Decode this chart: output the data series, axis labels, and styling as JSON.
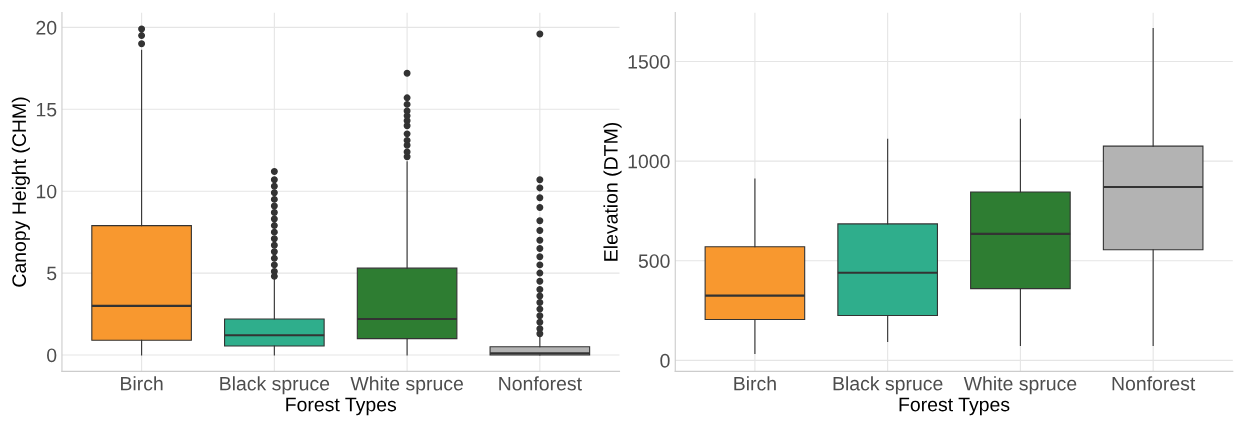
{
  "chart_data": [
    {
      "type": "box",
      "xlabel": "Forest Types",
      "ylabel": "Canopy Height (CHM)",
      "categories": [
        "Birch",
        "Black spruce",
        "White spruce",
        "Nonforest"
      ],
      "colors": [
        "#f8982f",
        "#2fae8c",
        "#2e7d32",
        "#b3b3b3"
      ],
      "ylim": [
        -1.0,
        20.9
      ],
      "yticks": [
        0,
        5,
        10,
        15,
        20
      ],
      "grid": true,
      "boxes": [
        {
          "low": 0,
          "q1": 0.9,
          "median": 3.0,
          "q3": 7.9,
          "high": 18.6,
          "outliers": [
            19.0,
            19.5,
            19.9
          ]
        },
        {
          "low": 0,
          "q1": 0.55,
          "median": 1.2,
          "q3": 2.2,
          "high": 4.6,
          "outliers": [
            4.8,
            5.1,
            5.5,
            5.9,
            6.3,
            6.7,
            7.1,
            7.5,
            7.9,
            8.3,
            8.7,
            9.1,
            9.5,
            9.9,
            10.3,
            10.7,
            11.2
          ]
        },
        {
          "low": 0,
          "q1": 1.0,
          "median": 2.2,
          "q3": 5.3,
          "high": 11.8,
          "outliers": [
            12.1,
            12.4,
            12.8,
            13.1,
            13.5,
            14.0,
            14.3,
            14.6,
            14.9,
            15.3,
            15.7,
            17.2
          ]
        },
        {
          "low": 0,
          "q1": 0.0,
          "median": 0.1,
          "q3": 0.5,
          "high": 1.2,
          "outliers": [
            1.3,
            1.6,
            2.0,
            2.4,
            2.8,
            3.2,
            3.6,
            4.0,
            4.5,
            5.0,
            5.5,
            6.0,
            6.5,
            7.0,
            7.6,
            8.2,
            9.0,
            9.6,
            10.2,
            10.7,
            19.6
          ]
        }
      ]
    },
    {
      "type": "box",
      "xlabel": "Forest Types",
      "ylabel": "Elevation (DTM)",
      "categories": [
        "Birch",
        "Black spruce",
        "White spruce",
        "Nonforest"
      ],
      "colors": [
        "#f8982f",
        "#2fae8c",
        "#2e7d32",
        "#b3b3b3"
      ],
      "ylim": [
        -55,
        1745
      ],
      "yticks": [
        0,
        500,
        1000,
        1500
      ],
      "grid": true,
      "boxes": [
        {
          "low": 35,
          "q1": 205,
          "median": 325,
          "q3": 570,
          "high": 910
        },
        {
          "low": 95,
          "q1": 225,
          "median": 440,
          "q3": 685,
          "high": 1110
        },
        {
          "low": 75,
          "q1": 360,
          "median": 635,
          "q3": 845,
          "high": 1210
        },
        {
          "low": 75,
          "q1": 555,
          "median": 870,
          "q3": 1075,
          "high": 1665
        }
      ]
    }
  ]
}
